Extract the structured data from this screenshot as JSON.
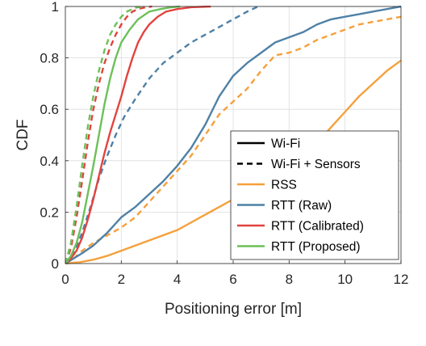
{
  "chart_data": {
    "type": "line",
    "xlabel": "Positioning error [m]",
    "ylabel": "CDF",
    "xlim": [
      0,
      12
    ],
    "ylim": [
      0,
      1
    ],
    "xticks": [
      0,
      2,
      4,
      6,
      8,
      10,
      12
    ],
    "yticks": [
      0,
      0.2,
      0.4,
      0.6,
      0.8,
      1
    ],
    "xtick_labels": [
      "0",
      "2",
      "4",
      "6",
      "8",
      "10",
      "12"
    ],
    "ytick_labels": [
      "0",
      "0.2",
      "0.4",
      "0.6",
      "0.8",
      "1"
    ],
    "grid": true,
    "legend_position": "lower-right",
    "legend": [
      {
        "label": "Wi-Fi",
        "style": "solid",
        "color": "#000000"
      },
      {
        "label": "Wi-Fi + Sensors",
        "style": "dashed",
        "color": "#000000"
      },
      {
        "label": "RSS",
        "style": "solid",
        "color": "#f5a03c"
      },
      {
        "label": "RTT (Raw)",
        "style": "solid",
        "color": "#4f81a6"
      },
      {
        "label": "RTT (Calibrated)",
        "style": "solid",
        "color": "#e2433f"
      },
      {
        "label": "RTT (Proposed)",
        "style": "solid",
        "color": "#6cc05a"
      }
    ],
    "series": [
      {
        "method": "RSS",
        "mode": "Wi-Fi",
        "color": "#f5a03c",
        "dashed": false,
        "x": [
          0,
          0.5,
          1,
          1.5,
          2,
          2.5,
          3,
          3.5,
          4,
          4.5,
          5,
          5.5,
          6,
          6.5,
          7,
          7.5,
          8,
          8.5,
          9,
          9.5,
          10,
          10.5,
          11,
          11.5,
          12
        ],
        "y": [
          0,
          0.005,
          0.015,
          0.03,
          0.05,
          0.07,
          0.09,
          0.11,
          0.13,
          0.16,
          0.19,
          0.22,
          0.25,
          0.27,
          0.3,
          0.33,
          0.37,
          0.42,
          0.47,
          0.53,
          0.59,
          0.65,
          0.7,
          0.75,
          0.79
        ]
      },
      {
        "method": "RSS",
        "mode": "Wi-Fi + Sensors",
        "color": "#f5a03c",
        "dashed": true,
        "x": [
          0,
          0.3,
          0.6,
          1,
          1.5,
          2,
          2.5,
          3,
          3.5,
          4,
          4.5,
          5,
          5.5,
          6,
          6.5,
          7,
          7.5,
          8,
          8.5,
          9,
          9.5,
          10,
          10.5,
          11,
          11.5,
          12
        ],
        "y": [
          0,
          0.02,
          0.05,
          0.08,
          0.11,
          0.14,
          0.18,
          0.24,
          0.3,
          0.36,
          0.42,
          0.5,
          0.58,
          0.63,
          0.68,
          0.75,
          0.81,
          0.82,
          0.84,
          0.87,
          0.89,
          0.91,
          0.93,
          0.94,
          0.95,
          0.96
        ]
      },
      {
        "method": "RTT (Raw)",
        "mode": "Wi-Fi",
        "color": "#4f81a6",
        "dashed": false,
        "x": [
          0,
          0.3,
          0.6,
          1,
          1.5,
          2,
          2.5,
          3,
          3.5,
          4,
          4.5,
          5,
          5.5,
          6,
          6.5,
          7,
          7.5,
          8,
          8.5,
          9,
          9.5,
          10,
          10.5,
          11,
          11.5,
          12
        ],
        "y": [
          0,
          0.02,
          0.04,
          0.07,
          0.12,
          0.18,
          0.22,
          0.27,
          0.32,
          0.38,
          0.45,
          0.54,
          0.65,
          0.73,
          0.78,
          0.82,
          0.86,
          0.88,
          0.9,
          0.93,
          0.95,
          0.96,
          0.97,
          0.98,
          0.99,
          1.0
        ]
      },
      {
        "method": "RTT (Raw)",
        "mode": "Wi-Fi + Sensors",
        "color": "#4f81a6",
        "dashed": true,
        "x": [
          0,
          0.3,
          0.6,
          0.9,
          1.2,
          1.5,
          1.8,
          2.1,
          2.5,
          3,
          3.5,
          4,
          4.5,
          5,
          5.5,
          6,
          6.5,
          6.9
        ],
        "y": [
          0,
          0.04,
          0.12,
          0.22,
          0.33,
          0.42,
          0.5,
          0.57,
          0.64,
          0.72,
          0.78,
          0.82,
          0.86,
          0.89,
          0.92,
          0.95,
          0.98,
          1.0
        ]
      },
      {
        "method": "RTT (Calibrated)",
        "mode": "Wi-Fi",
        "color": "#e2433f",
        "dashed": false,
        "x": [
          0,
          0.2,
          0.4,
          0.6,
          0.8,
          1,
          1.2,
          1.4,
          1.6,
          1.8,
          2,
          2.2,
          2.4,
          2.6,
          2.8,
          3,
          3.3,
          3.6,
          4,
          4.5,
          5.2
        ],
        "y": [
          0,
          0.02,
          0.05,
          0.1,
          0.17,
          0.25,
          0.34,
          0.43,
          0.51,
          0.58,
          0.65,
          0.73,
          0.8,
          0.86,
          0.9,
          0.93,
          0.96,
          0.98,
          0.99,
          0.997,
          1.0
        ]
      },
      {
        "method": "RTT (Calibrated)",
        "mode": "Wi-Fi + Sensors",
        "color": "#e2433f",
        "dashed": true,
        "x": [
          0,
          0.2,
          0.4,
          0.6,
          0.8,
          1,
          1.2,
          1.4,
          1.6,
          1.8,
          2,
          2.2,
          2.4,
          2.6,
          2.8,
          3.1
        ],
        "y": [
          0,
          0.06,
          0.18,
          0.32,
          0.47,
          0.6,
          0.7,
          0.78,
          0.84,
          0.89,
          0.93,
          0.96,
          0.98,
          0.99,
          0.995,
          1.0
        ]
      },
      {
        "method": "RTT (Proposed)",
        "mode": "Wi-Fi",
        "color": "#6cc05a",
        "dashed": false,
        "x": [
          0,
          0.2,
          0.4,
          0.6,
          0.8,
          1,
          1.2,
          1.4,
          1.6,
          1.8,
          2,
          2.3,
          2.6,
          3,
          3.4,
          3.8,
          4.1
        ],
        "y": [
          0,
          0.03,
          0.08,
          0.16,
          0.27,
          0.38,
          0.5,
          0.62,
          0.72,
          0.8,
          0.86,
          0.91,
          0.95,
          0.98,
          0.99,
          0.997,
          1.0
        ]
      },
      {
        "method": "RTT (Proposed)",
        "mode": "Wi-Fi + Sensors",
        "color": "#6cc05a",
        "dashed": true,
        "x": [
          0,
          0.2,
          0.4,
          0.6,
          0.8,
          1,
          1.2,
          1.4,
          1.6,
          1.8,
          2,
          2.2,
          2.5,
          2.8
        ],
        "y": [
          0,
          0.08,
          0.22,
          0.38,
          0.53,
          0.65,
          0.75,
          0.83,
          0.89,
          0.93,
          0.96,
          0.98,
          0.995,
          1.0
        ]
      }
    ]
  }
}
